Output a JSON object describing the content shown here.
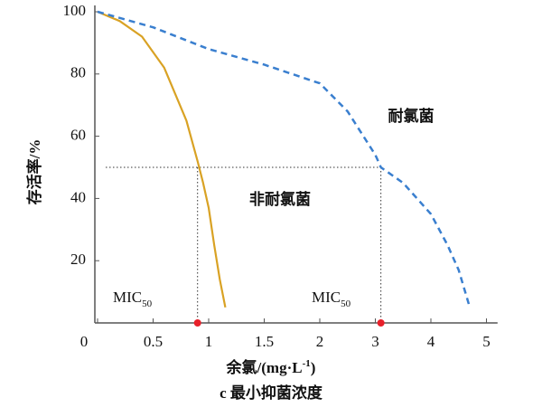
{
  "chart_data": {
    "type": "line",
    "xlabel": {
      "text": "余氯/(mg·L",
      "sup": "-1",
      "tail": ")"
    },
    "ylabel": "存活率/%",
    "caption": "c 最小抑菌浓度",
    "xlim": [
      0,
      5.2
    ],
    "xticks": [
      0,
      0.5,
      1,
      1.5,
      2,
      3,
      4,
      5
    ],
    "ylim": [
      0,
      100
    ],
    "yticks": [
      20,
      40,
      60,
      80,
      100
    ],
    "series": [
      {
        "name": "非耐氯菌",
        "color": "#d9a224",
        "style": "solid",
        "x": [
          0,
          0.2,
          0.4,
          0.6,
          0.8,
          0.9,
          0.95,
          1,
          1.05,
          1.1,
          1.15
        ],
        "values": [
          100,
          97,
          92,
          82,
          65,
          52,
          45,
          37,
          25,
          14,
          5
        ]
      },
      {
        "name": "耐氯菌",
        "color": "#3a7fcf",
        "style": "dashed",
        "x": [
          0,
          0.5,
          1,
          1.5,
          2,
          2.5,
          3,
          3.1,
          3.5,
          4,
          4.3,
          4.5,
          4.7
        ],
        "values": [
          100,
          95,
          88,
          83,
          77,
          68,
          54,
          50,
          45,
          35,
          25,
          17,
          5
        ]
      }
    ],
    "reference_y": 50,
    "mic50": [
      0.9,
      3.1
    ],
    "mic_label": {
      "text": "MIC",
      "sub": "50"
    },
    "marker_color": "#e8202a"
  }
}
